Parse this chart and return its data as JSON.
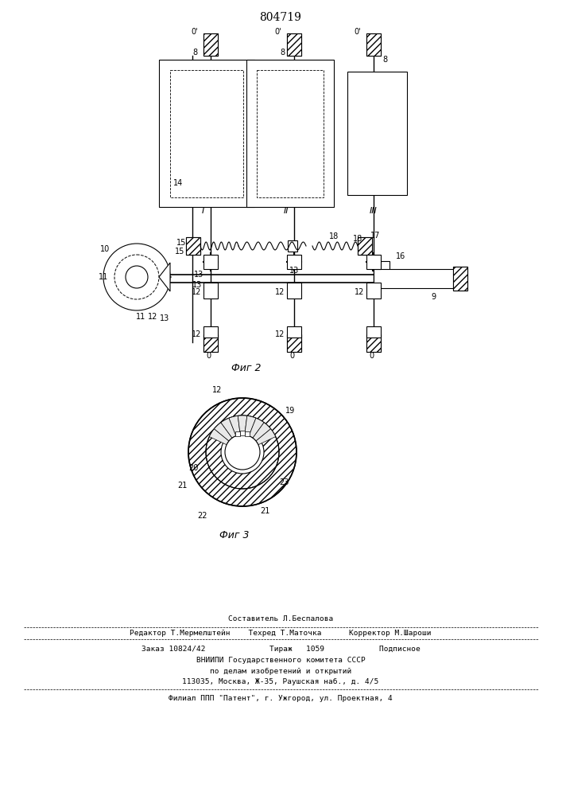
{
  "title": "804719",
  "fig2_label": "Фиг 2",
  "fig3_label": "Фиг 3",
  "bg_color": "#ffffff",
  "line_color": "#000000",
  "footer_line1": "Составитель Л.Беспалова",
  "footer_line2": "Редактор Т.Мермелштейн    Техред Т.Маточка      Корректор М.Шароши",
  "footer_line3": "Заказ 10824/42              Тираж   1059            Подписное",
  "footer_line4": "ВНИИПИ Государственного комитета СССР",
  "footer_line5": "по делам изобретений и открытий",
  "footer_line6": "113035, Москва, Ж-35, Раушская наб., д. 4/5",
  "footer_line7": "Филиал ППП \"Патент\", г. Ужгород, ул. Проектная, 4"
}
